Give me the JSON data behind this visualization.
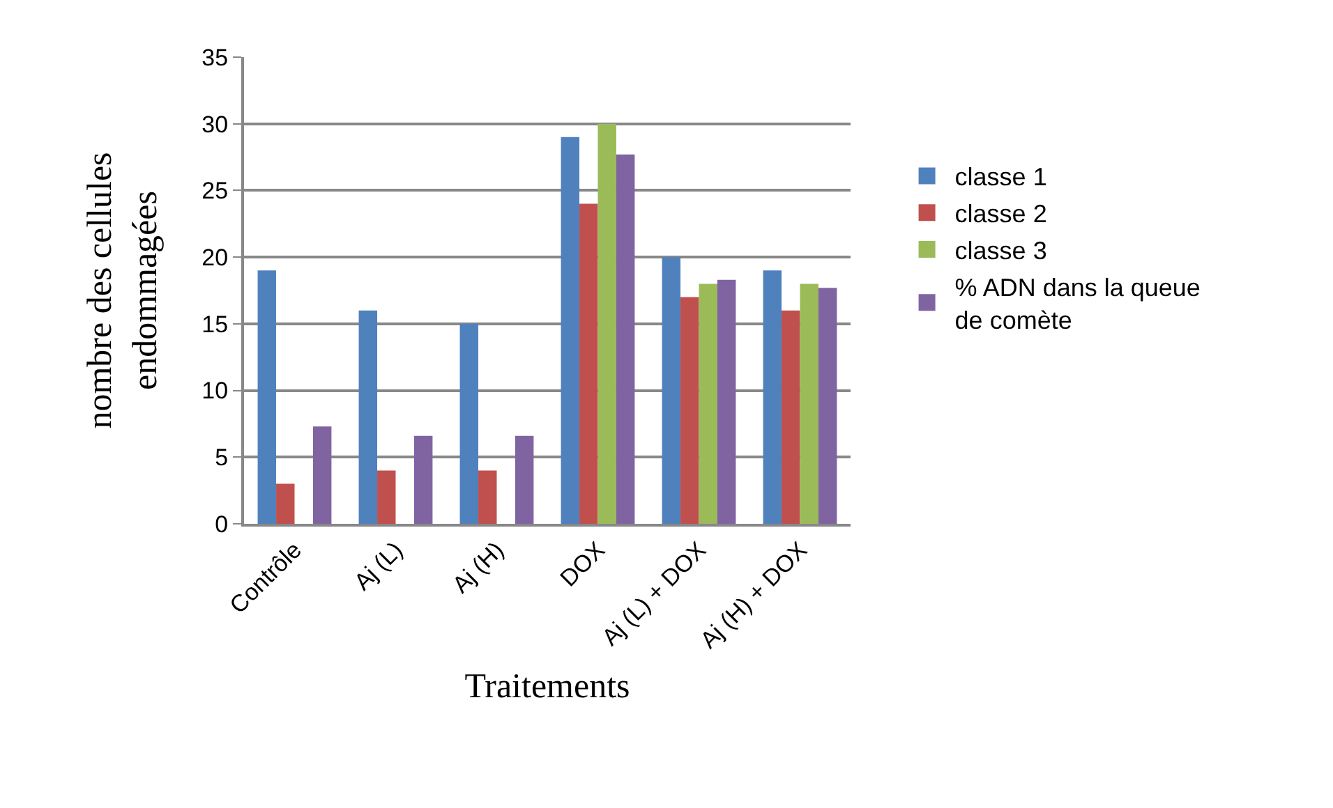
{
  "chart_data": {
    "type": "bar",
    "xlabel": "Traitements",
    "ylabel": "nombre des cellules\nendommagées",
    "categories": [
      "Contrôle",
      "Aj (L)",
      "Aj (H)",
      "DOX",
      "Aj (L) + DOX",
      "Aj (H) + DOX"
    ],
    "series": [
      {
        "name": "classe 1",
        "color": "#4f81bd",
        "values": [
          19,
          16,
          15,
          29,
          20,
          19
        ]
      },
      {
        "name": "classe 2",
        "color": "#c0504d",
        "values": [
          3,
          4,
          4,
          24,
          17,
          16
        ]
      },
      {
        "name": "classe 3",
        "color": "#9bbb59",
        "values": [
          0,
          0,
          0,
          30,
          18,
          18
        ]
      },
      {
        "name": "% ADN dans la queue\nde comète",
        "color": "#8064a2",
        "values": [
          7.3,
          6.6,
          6.6,
          27.7,
          18.3,
          17.7
        ]
      }
    ],
    "ylim": [
      0,
      35
    ],
    "yticks": [
      0,
      5,
      10,
      15,
      20,
      25,
      30,
      35
    ],
    "grid": "y",
    "legend": "right"
  }
}
